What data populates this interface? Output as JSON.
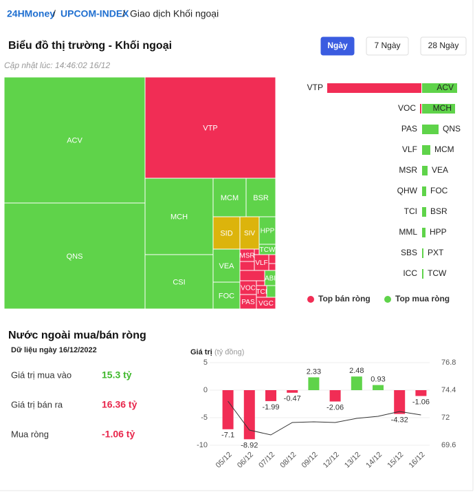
{
  "breadcrumb": {
    "items": [
      "24HMoney",
      "UPCOM-INDEX",
      "Giao dịch Khối ngoại"
    ],
    "separator": "/"
  },
  "title": "Biểu đồ thị trường - Khối ngoại",
  "buttons": [
    {
      "label": "Ngày",
      "active": true
    },
    {
      "label": "7 Ngày",
      "active": false
    },
    {
      "label": "28 Ngày",
      "active": false
    }
  ],
  "updated": "Cập nhật lúc: 14:46:02 16/12",
  "treemap": {
    "tiles": [
      {
        "label": "ACV",
        "color": "#5fd34a"
      },
      {
        "label": "QNS",
        "color": "#5fd34a"
      },
      {
        "label": "VTP",
        "color": "#f12d55"
      },
      {
        "label": "MCH",
        "color": "#5fd34a"
      },
      {
        "label": "CSI",
        "color": "#5fd34a"
      },
      {
        "label": "MCM",
        "color": "#5fd34a"
      },
      {
        "label": "BSR",
        "color": "#5fd34a"
      },
      {
        "label": "SID",
        "color": "#dcb40c"
      },
      {
        "label": "SIV",
        "color": "#dcb40c"
      },
      {
        "label": "HPP",
        "color": "#5fd34a"
      },
      {
        "label": "TCW",
        "color": "#5fd34a"
      },
      {
        "label": "VEA",
        "color": "#5fd34a"
      },
      {
        "label": "FOC",
        "color": "#5fd34a"
      },
      {
        "label": "MSR",
        "color": "#f12d55"
      },
      {
        "label": "VLF",
        "color": "#f12d55"
      },
      {
        "label": "ABI",
        "color": "#5fd34a"
      },
      {
        "label": "VOC",
        "color": "#f12d55"
      },
      {
        "label": "TCI",
        "color": "#f12d55"
      },
      {
        "label": "PAS",
        "color": "#f12d55"
      },
      {
        "label": "VGC",
        "color": "#f12d55"
      }
    ]
  },
  "top_sell": {
    "names": [
      "VTP",
      "VOC",
      "PAS",
      "VLF",
      "MSR",
      "QHW",
      "TCI",
      "MML",
      "SBS",
      "ICC"
    ],
    "values": [
      137,
      2,
      0,
      0,
      0,
      0,
      0,
      0,
      0,
      0
    ],
    "color": "#f12d55"
  },
  "top_buy": {
    "names": [
      "ACV",
      "MCH",
      "QNS",
      "MCM",
      "VEA",
      "FOC",
      "BSR",
      "HPP",
      "PXT",
      "TCW"
    ],
    "values": [
      51,
      48,
      24,
      12,
      8,
      6,
      6,
      5,
      2,
      2
    ],
    "color": "#5fd34a"
  },
  "legend": [
    {
      "label": "Top bán ròng",
      "color": "#f12d55"
    },
    {
      "label": "Top mua ròng",
      "color": "#5fd34a"
    }
  ],
  "summary": {
    "title": "Nước ngoài mua/bán ròng",
    "date": "Dữ liệu ngày 16/12/2022",
    "rows": [
      {
        "label": "Giá trị mua vào",
        "value": "15.3 tỷ",
        "color": "#3fb82c"
      },
      {
        "label": "Giá trị bán ra",
        "value": "16.36 tỷ",
        "color": "#e8264b"
      },
      {
        "label": "Mua ròng",
        "value": "-1.06 tỷ",
        "color": "#e8264b"
      }
    ]
  },
  "chart_data": {
    "type": "bar",
    "title": "Giá trị",
    "subtitle": "(tỷ đồng)",
    "categories": [
      "05/12",
      "06/12",
      "07/12",
      "08/12",
      "09/12",
      "12/12",
      "13/12",
      "14/12",
      "15/12",
      "16/12"
    ],
    "series": [
      {
        "type": "bar",
        "values": [
          -7.1,
          -8.92,
          -1.99,
          -0.47,
          2.33,
          -2.06,
          2.48,
          0.93,
          -4.32,
          -1.06
        ],
        "color_up": "#5fd34a",
        "color_down": "#f12d55"
      },
      {
        "type": "line",
        "axis": "y2",
        "color": "#333333",
        "values": [
          73.44,
          70.92,
          70.5,
          71.58,
          71.64,
          71.58,
          71.94,
          72.12,
          72.54,
          72.24
        ]
      }
    ],
    "ylim": [
      -10,
      5
    ],
    "yticks": [
      5,
      0,
      -5,
      -10
    ],
    "y2lim": [
      69.6,
      76.8
    ],
    "y2ticks": [
      76.8,
      74.4,
      72,
      69.6
    ],
    "grid": true
  }
}
